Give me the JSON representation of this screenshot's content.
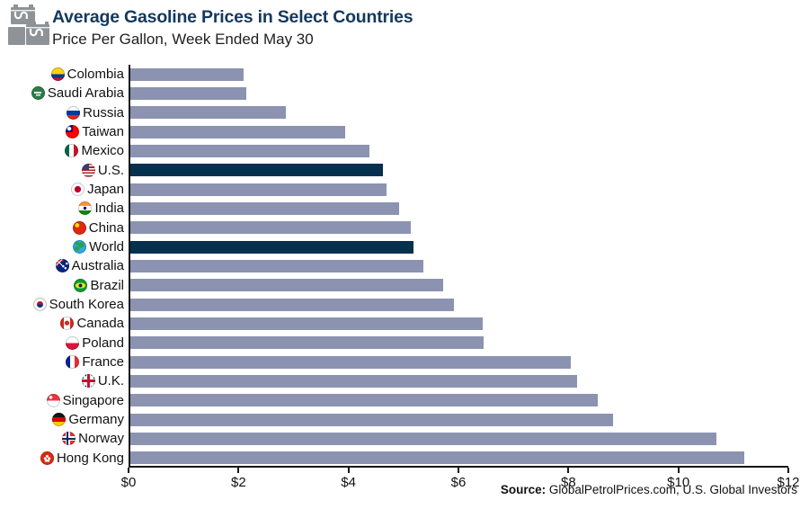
{
  "header": {
    "title": "Average Gasoline Prices in Select Countries",
    "subtitle": "Price Per Gallon, Week Ended May 30",
    "logo_icon": "oil-barrels-logo-icon"
  },
  "chart_data": {
    "type": "bar",
    "orientation": "horizontal",
    "title": "Average Gasoline Prices in Select Countries",
    "subtitle": "Price Per Gallon, Week Ended May 30",
    "xlim": [
      0,
      12
    ],
    "x_tick_labels": [
      "$0",
      "$2",
      "$4",
      "$6",
      "$8",
      "$10",
      "$12"
    ],
    "grid": false,
    "bar_color": "#8b93b1",
    "highlight_color": "#05304e",
    "rows": [
      {
        "label": "Colombia",
        "value": 2.07,
        "icon": "colombia-flag-icon",
        "highlighted": false
      },
      {
        "label": "Saudi Arabia",
        "value": 2.12,
        "icon": "saudi-arabia-flag-icon",
        "highlighted": false
      },
      {
        "label": "Russia",
        "value": 2.83,
        "icon": "russia-flag-icon",
        "highlighted": false
      },
      {
        "label": "Taiwan",
        "value": 3.92,
        "icon": "taiwan-flag-icon",
        "highlighted": false
      },
      {
        "label": "Mexico",
        "value": 4.36,
        "icon": "mexico-flag-icon",
        "highlighted": false
      },
      {
        "label": "U.S.",
        "value": 4.6,
        "icon": "us-flag-icon",
        "highlighted": true
      },
      {
        "label": "Japan",
        "value": 4.68,
        "icon": "japan-flag-icon",
        "highlighted": false
      },
      {
        "label": "India",
        "value": 4.9,
        "icon": "india-flag-icon",
        "highlighted": false
      },
      {
        "label": "China",
        "value": 5.11,
        "icon": "china-flag-icon",
        "highlighted": false
      },
      {
        "label": "World",
        "value": 5.17,
        "icon": "world-globe-icon",
        "highlighted": true
      },
      {
        "label": "Australia",
        "value": 5.35,
        "icon": "australia-flag-icon",
        "highlighted": false
      },
      {
        "label": "Brazil",
        "value": 5.7,
        "icon": "brazil-flag-icon",
        "highlighted": false
      },
      {
        "label": "South Korea",
        "value": 5.9,
        "icon": "south-korea-flag-icon",
        "highlighted": false
      },
      {
        "label": "Canada",
        "value": 6.42,
        "icon": "canada-flag-icon",
        "highlighted": false
      },
      {
        "label": "Poland",
        "value": 6.45,
        "icon": "poland-flag-icon",
        "highlighted": false
      },
      {
        "label": "France",
        "value": 8.03,
        "icon": "france-flag-icon",
        "highlighted": false
      },
      {
        "label": "U.K.",
        "value": 8.14,
        "icon": "uk-flag-icon",
        "highlighted": false
      },
      {
        "label": "Singapore",
        "value": 8.52,
        "icon": "singapore-flag-icon",
        "highlighted": false
      },
      {
        "label": "Germany",
        "value": 8.8,
        "icon": "germany-flag-icon",
        "highlighted": false
      },
      {
        "label": "Norway",
        "value": 10.69,
        "icon": "norway-flag-icon",
        "highlighted": false
      },
      {
        "label": "Hong Kong",
        "value": 11.19,
        "icon": "hong-kong-flag-icon",
        "highlighted": false
      }
    ]
  },
  "footer": {
    "source_label": "Source:",
    "source_text": " GlobalPetrolPrices.com, U.S. Global Investors"
  }
}
